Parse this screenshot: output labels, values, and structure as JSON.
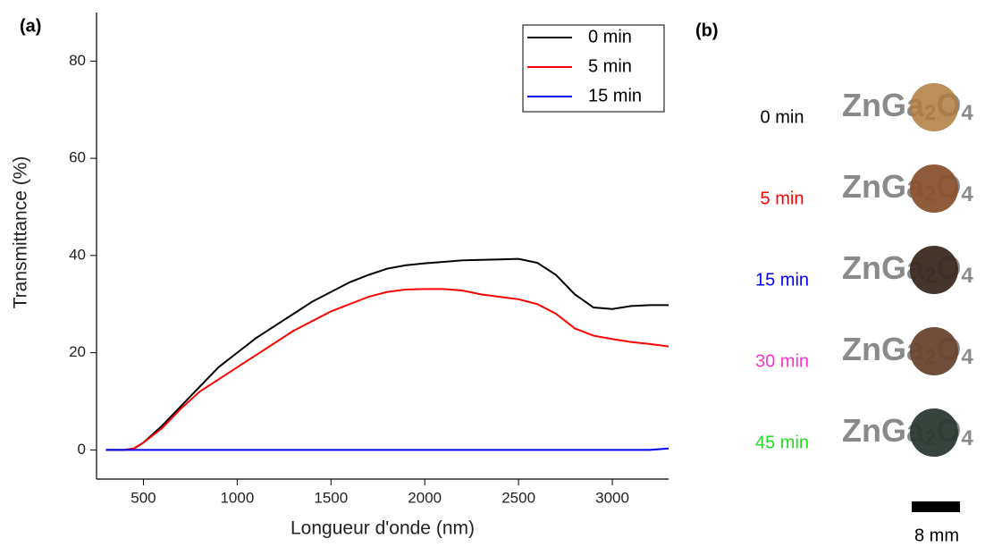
{
  "panel_labels": [
    "(a)",
    "(b)"
  ],
  "chart_data": {
    "type": "line",
    "xlabel": "Longueur d'onde (nm)",
    "ylabel": "Transmittance (%)",
    "x": [
      300,
      400,
      450,
      500,
      600,
      700,
      800,
      900,
      1000,
      1100,
      1200,
      1300,
      1400,
      1500,
      1600,
      1700,
      1800,
      1900,
      2000,
      2100,
      2200,
      2300,
      2400,
      2500,
      2600,
      2700,
      2800,
      2900,
      3000,
      3100,
      3200,
      3300
    ],
    "series": [
      {
        "name": "0 min",
        "color": "#000000",
        "values": [
          0,
          0,
          0.3,
          1.5,
          5,
          9,
          13,
          17,
          20,
          23,
          25.5,
          28,
          30.5,
          32.5,
          34.5,
          36,
          37.3,
          38,
          38.4,
          38.7,
          39,
          39.1,
          39.2,
          39.3,
          38.5,
          36,
          32,
          29.3,
          29,
          29.6,
          29.8,
          29.8
        ]
      },
      {
        "name": "5 min",
        "color": "#ff0000",
        "values": [
          0,
          0,
          0.3,
          1.5,
          4.5,
          8.5,
          12,
          14.5,
          17,
          19.5,
          22,
          24.5,
          26.5,
          28.5,
          30,
          31.5,
          32.5,
          33,
          33.1,
          33.1,
          32.8,
          32,
          31.5,
          31,
          30,
          28,
          25,
          23.5,
          22.8,
          22.2,
          21.8,
          21.3
        ]
      },
      {
        "name": "15 min",
        "color": "#0000ff",
        "values": [
          0,
          0,
          0,
          0,
          0,
          0,
          0,
          0,
          0,
          0,
          0,
          0,
          0,
          0,
          0,
          0,
          0,
          0,
          0,
          0,
          0,
          0,
          0,
          0,
          0,
          0,
          0,
          0,
          0,
          0,
          0,
          0.3
        ]
      }
    ],
    "xlim": [
      250,
      3300
    ],
    "ylim": [
      -6,
      90
    ],
    "xticks": [
      500,
      1000,
      1500,
      2000,
      2500,
      3000
    ],
    "yticks": [
      0,
      20,
      40,
      60,
      80
    ],
    "legend": "upper right"
  },
  "panel_b": {
    "formula": [
      "ZnGa",
      "2",
      "O",
      "4"
    ],
    "samples": [
      {
        "label": "0 min",
        "color": "#000000"
      },
      {
        "label": "5 min",
        "color": "#ff0000"
      },
      {
        "label": "15 min",
        "color": "#0000ff"
      },
      {
        "label": "30 min",
        "color": "#ff33cc"
      },
      {
        "label": "45 min",
        "color": "#22dd22"
      }
    ],
    "scale_bar": "8 mm"
  }
}
